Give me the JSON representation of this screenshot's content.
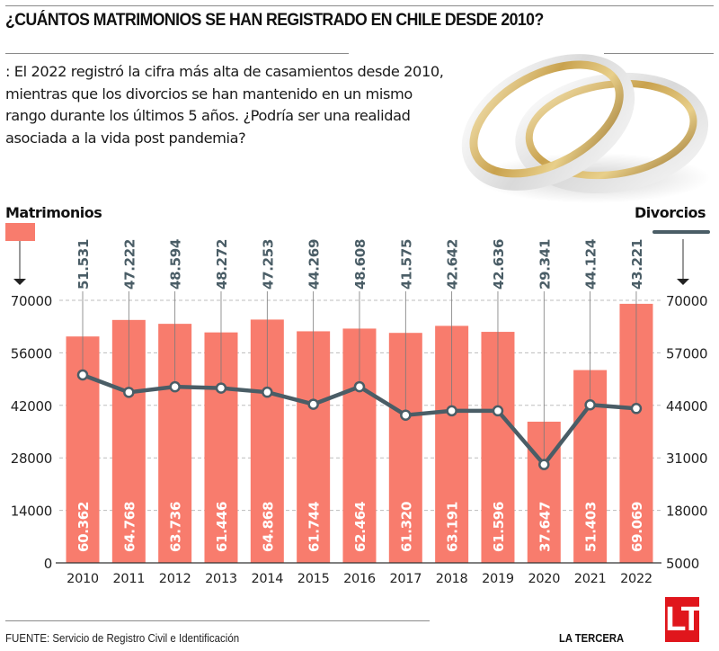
{
  "header": {
    "title": "¿CUÁNTOS MATRIMONIOS SE HAN REGISTRADO EN CHILE DESDE 2010?",
    "intro": ": El 2022 registró la cifra más alta de casamientos desde 2010, mientras que los divorcios se han mantenido en un mismo rango durante los últimos 5 años. ¿Podría ser una realidad asociada a la vida post pandemia?",
    "illustration": "wedding-rings-icon"
  },
  "colors": {
    "bars": "#f87c6d",
    "line": "#4a5d66",
    "grid": "#bdbdbd",
    "logo": "#e0161c"
  },
  "chart_data": {
    "type": "bar",
    "title": "¿CUÁNTOS MATRIMONIOS SE HAN REGISTRADO EN CHILE DESDE 2010?",
    "categories": [
      "2010",
      "2011",
      "2012",
      "2013",
      "2014",
      "2015",
      "2016",
      "2017",
      "2018",
      "2019",
      "2020",
      "2021",
      "2022"
    ],
    "series": [
      {
        "name": "Matrimonios",
        "type": "bar",
        "axis": "left",
        "values": [
          60362,
          64768,
          63736,
          61446,
          64868,
          61744,
          62464,
          61320,
          63191,
          61596,
          37647,
          51403,
          69069
        ],
        "labels": [
          "60.362",
          "64.768",
          "63.736",
          "61.446",
          "64.868",
          "61.744",
          "62.464",
          "61.320",
          "63.191",
          "61.596",
          "37.647",
          "51.403",
          "69.069"
        ]
      },
      {
        "name": "Divorcios",
        "type": "line",
        "axis": "right",
        "values": [
          51531,
          47222,
          48594,
          48272,
          47253,
          44269,
          48608,
          41575,
          42642,
          42636,
          29341,
          44124,
          43221
        ],
        "labels": [
          "51.531",
          "47.222",
          "48.594",
          "48.272",
          "47.253",
          "44.269",
          "48.608",
          "41.575",
          "42.642",
          "42.636",
          "29.341",
          "44.124",
          "43.221"
        ]
      }
    ],
    "left_axis": {
      "label": "Matrimonios",
      "ylim": [
        0,
        70000
      ],
      "ticks": [
        "0",
        "14000",
        "28000",
        "42000",
        "56000",
        "70000"
      ],
      "tick_values": [
        0,
        14000,
        28000,
        42000,
        56000,
        70000
      ]
    },
    "right_axis": {
      "label": "Divorcios",
      "ylim": [
        5000,
        70000
      ],
      "ticks": [
        "5000",
        "18000",
        "31000",
        "44000",
        "57000",
        "70000"
      ],
      "tick_values": [
        5000,
        18000,
        31000,
        44000,
        57000,
        70000
      ]
    },
    "xlabel": "",
    "grid": true,
    "legend": [
      "top-left: Matrimonios (bar)",
      "top-right: Divorcios (line)"
    ]
  },
  "footer": {
    "source": "FUENTE: Servicio de Registro Civil e Identificación",
    "brand": "LA TERCERA",
    "logo_text": "LT"
  }
}
